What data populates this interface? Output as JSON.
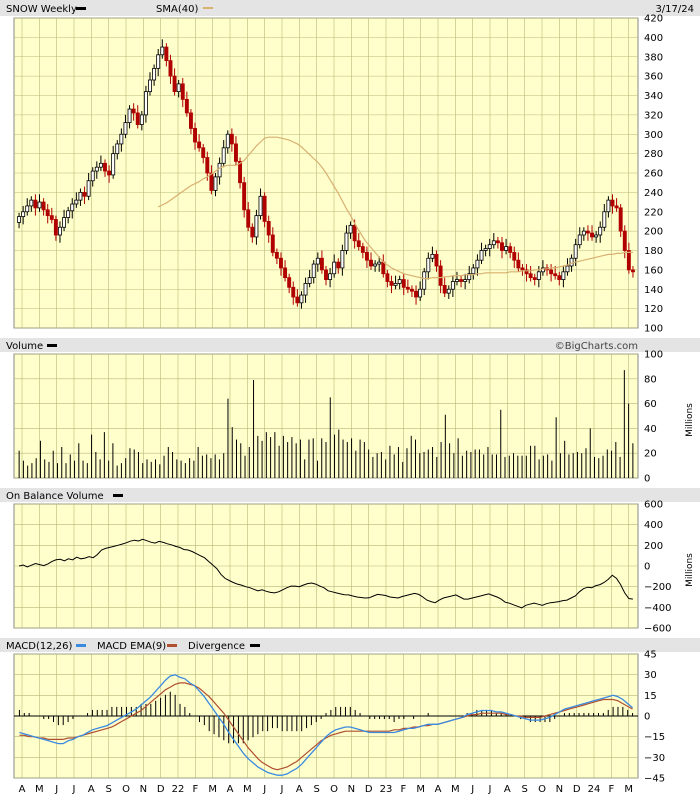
{
  "header": {
    "symbol_label": "SNOW Weekly",
    "sma_label": "SMA(40)",
    "date": "3/17/24"
  },
  "volume_header": {
    "label": "Volume",
    "credit": "©BigCharts.com"
  },
  "obv_header": {
    "label": "On Balance Volume"
  },
  "macd_header": {
    "macd_label": "MACD(12,26)",
    "ema_label": "MACD EMA(9)",
    "div_label": "Divergence"
  },
  "colors": {
    "plot_bg": "#ffffcc",
    "grid": "#b8b878",
    "header_bg": "#e4e4e4",
    "up_candle": "#000000",
    "down_candle": "#b00000",
    "sma": "#d8b070",
    "macd": "#3a8ae0",
    "ema": "#b05030",
    "line": "#000000"
  },
  "x_ticks": [
    "A",
    "M",
    "J",
    "J",
    "A",
    "S",
    "O",
    "N",
    "D",
    "22",
    "F",
    "M",
    "A",
    "M",
    "J",
    "J",
    "A",
    "S",
    "O",
    "N",
    "D",
    "23",
    "F",
    "M",
    "A",
    "M",
    "J",
    "J",
    "A",
    "S",
    "O",
    "N",
    "D",
    "24",
    "F",
    "M"
  ],
  "chart_data": [
    {
      "type": "candlestick",
      "title": "SNOW Weekly",
      "ylim": [
        100,
        420
      ],
      "y_ticks": [
        100,
        120,
        140,
        160,
        180,
        200,
        220,
        240,
        260,
        280,
        300,
        320,
        340,
        360,
        380,
        400,
        420
      ],
      "legend": [
        "SNOW Weekly",
        "SMA(40)"
      ],
      "close": [
        215,
        220,
        226,
        232,
        224,
        230,
        222,
        216,
        212,
        196,
        204,
        214,
        221,
        228,
        232,
        240,
        236,
        252,
        262,
        266,
        270,
        262,
        258,
        280,
        290,
        300,
        312,
        326,
        322,
        310,
        320,
        344,
        356,
        368,
        382,
        390,
        376,
        360,
        344,
        352,
        336,
        322,
        306,
        292,
        286,
        276,
        260,
        242,
        256,
        270,
        286,
        300,
        290,
        272,
        250,
        222,
        204,
        194,
        216,
        236,
        210,
        196,
        178,
        172,
        162,
        152,
        142,
        132,
        126,
        134,
        146,
        152,
        166,
        172,
        160,
        150,
        156,
        168,
        162,
        180,
        198,
        206,
        190,
        184,
        178,
        170,
        164,
        166,
        168,
        156,
        148,
        144,
        146,
        150,
        142,
        140,
        138,
        132,
        140,
        158,
        172,
        176,
        164,
        144,
        136,
        140,
        148,
        150,
        148,
        150,
        156,
        162,
        170,
        180,
        182,
        186,
        190,
        188,
        180,
        184,
        178,
        170,
        162,
        160,
        156,
        152,
        150,
        158,
        162,
        160,
        156,
        154,
        150,
        158,
        164,
        172,
        186,
        196,
        200,
        198,
        194,
        196,
        204,
        220,
        232,
        226,
        224,
        200,
        180,
        160,
        158
      ],
      "sma": [
        225,
        227,
        229,
        232,
        235,
        238,
        241,
        244,
        247,
        249,
        251,
        254,
        256,
        259,
        262,
        265,
        267,
        268,
        268,
        268,
        270,
        273,
        278,
        283,
        288,
        292,
        296,
        297,
        297,
        297,
        296,
        295,
        294,
        292,
        290,
        287,
        283,
        279,
        275,
        271,
        266,
        260,
        253,
        246,
        239,
        231,
        223,
        216,
        208,
        201,
        194,
        188,
        183,
        178,
        173,
        168,
        165,
        162,
        160,
        158,
        156,
        155,
        154,
        153,
        152,
        151,
        151,
        152,
        152,
        152,
        153,
        153,
        154,
        154,
        154,
        155,
        155,
        155,
        156,
        156,
        157,
        157,
        157,
        157,
        157,
        157,
        158,
        158,
        158,
        159,
        159,
        159,
        160,
        160,
        161,
        161,
        162,
        162,
        163,
        164,
        165,
        167,
        168,
        169,
        170,
        171,
        172,
        173,
        174,
        175,
        176,
        176,
        177,
        177,
        178,
        178,
        178
      ],
      "sma_offset": 34
    },
    {
      "type": "bar",
      "title": "Volume",
      "ylabel": "Millions",
      "ylim": [
        0,
        100
      ],
      "y_ticks": [
        0,
        20,
        40,
        60,
        80,
        100
      ],
      "values": [
        22,
        14,
        10,
        12,
        16,
        30,
        15,
        13,
        22,
        12,
        25,
        12,
        19,
        14,
        28,
        14,
        12,
        35,
        21,
        15,
        37,
        14,
        28,
        10,
        12,
        16,
        24,
        23,
        21,
        12,
        15,
        13,
        15,
        11,
        18,
        25,
        21,
        15,
        14,
        12,
        16,
        14,
        25,
        18,
        19,
        16,
        19,
        15,
        20,
        64,
        41,
        31,
        28,
        18,
        25,
        79,
        34,
        30,
        37,
        33,
        37,
        26,
        34,
        29,
        33,
        28,
        31,
        15,
        31,
        32,
        14,
        32,
        29,
        65,
        35,
        39,
        31,
        29,
        32,
        22,
        31,
        29,
        23,
        17,
        20,
        21,
        15,
        26,
        19,
        25,
        13,
        24,
        34,
        31,
        20,
        21,
        23,
        25,
        17,
        29,
        51,
        28,
        20,
        32,
        18,
        22,
        21,
        23,
        23,
        19,
        25,
        19,
        19,
        55,
        17,
        18,
        20,
        18,
        18,
        18,
        26,
        26,
        15,
        18,
        19,
        14,
        49,
        20,
        30,
        19,
        20,
        21,
        20,
        24,
        40,
        17,
        16,
        18,
        23,
        22,
        29,
        17,
        87,
        60,
        28
      ]
    },
    {
      "type": "line",
      "title": "On Balance Volume",
      "ylabel": "Millions",
      "ylim": [
        -600,
        600
      ],
      "y_ticks": [
        600,
        400,
        200,
        0,
        -200,
        -400,
        -600
      ],
      "values": [
        0,
        10,
        -10,
        8,
        24,
        14,
        4,
        20,
        45,
        60,
        65,
        50,
        70,
        60,
        85,
        70,
        76,
        90,
        80,
        110,
        155,
        170,
        180,
        190,
        200,
        212,
        225,
        240,
        250,
        242,
        258,
        245,
        230,
        222,
        238,
        228,
        215,
        205,
        190,
        180,
        160,
        155,
        140,
        120,
        100,
        80,
        45,
        10,
        -25,
        -80,
        -120,
        -140,
        -160,
        -175,
        -185,
        -200,
        -210,
        -225,
        -240,
        -230,
        -245,
        -255,
        -260,
        -250,
        -230,
        -210,
        -195,
        -195,
        -200,
        -185,
        -170,
        -165,
        -175,
        -195,
        -210,
        -240,
        -250,
        -260,
        -270,
        -278,
        -280,
        -290,
        -300,
        -305,
        -310,
        -308,
        -290,
        -275,
        -280,
        -285,
        -300,
        -305,
        -310,
        -295,
        -285,
        -275,
        -265,
        -275,
        -300,
        -330,
        -345,
        -355,
        -330,
        -310,
        -300,
        -290,
        -280,
        -300,
        -320,
        -320,
        -310,
        -300,
        -290,
        -280,
        -270,
        -285,
        -300,
        -320,
        -350,
        -360,
        -375,
        -390,
        -405,
        -380,
        -370,
        -360,
        -370,
        -380,
        -365,
        -355,
        -350,
        -345,
        -335,
        -330,
        -310,
        -290,
        -250,
        -220,
        -205,
        -210,
        -190,
        -180,
        -160,
        -130,
        -90,
        -120,
        -180,
        -260,
        -315,
        -320
      ]
    },
    {
      "type": "line",
      "title": "MACD(12,26)",
      "ylim": [
        -45,
        45
      ],
      "y_ticks": [
        45,
        30,
        15,
        0,
        -15,
        -30,
        -45
      ],
      "legend": [
        "MACD(12,26)",
        "MACD EMA(9)",
        "Divergence"
      ],
      "macd": [
        -12,
        -13,
        -14,
        -15,
        -16,
        -17,
        -18,
        -19,
        -20,
        -20,
        -18,
        -17,
        -15,
        -14,
        -12,
        -10,
        -9,
        -8,
        -7,
        -5,
        -3,
        -1,
        1,
        3,
        5,
        8,
        11,
        14,
        18,
        22,
        26,
        29,
        30,
        28,
        27,
        24,
        22,
        18,
        14,
        9,
        4,
        -1,
        -6,
        -12,
        -17,
        -22,
        -27,
        -31,
        -34,
        -37,
        -39,
        -41,
        -42,
        -43,
        -43,
        -42,
        -40,
        -38,
        -35,
        -31,
        -27,
        -23,
        -19,
        -15,
        -12,
        -10,
        -9,
        -8,
        -8,
        -9,
        -10,
        -11,
        -12,
        -12,
        -12,
        -12,
        -12,
        -12,
        -11,
        -10,
        -9,
        -9,
        -8,
        -7,
        -6,
        -6,
        -6,
        -5,
        -4,
        -3,
        -2,
        -1,
        1,
        2,
        3,
        4,
        4,
        4,
        3,
        3,
        2,
        1,
        0,
        -1,
        -2,
        -3,
        -3,
        -3,
        -2,
        -1,
        1,
        3,
        5,
        6,
        7,
        8,
        9,
        10,
        11,
        12,
        13,
        14,
        15,
        14,
        12,
        9,
        6
      ],
      "ema": [
        -14,
        -14,
        -15,
        -15,
        -16,
        -16,
        -17,
        -17,
        -17,
        -17,
        -16,
        -16,
        -15,
        -14,
        -13,
        -12,
        -11,
        -10,
        -9,
        -8,
        -6,
        -4,
        -2,
        0,
        2,
        4,
        7,
        10,
        13,
        16,
        19,
        21,
        23,
        24,
        24,
        23,
        22,
        20,
        17,
        14,
        10,
        6,
        2,
        -3,
        -8,
        -13,
        -18,
        -23,
        -27,
        -31,
        -34,
        -36,
        -38,
        -39,
        -38,
        -37,
        -35,
        -33,
        -30,
        -27,
        -24,
        -21,
        -18,
        -16,
        -14,
        -13,
        -12,
        -11,
        -11,
        -11,
        -11,
        -11,
        -11,
        -11,
        -11,
        -11,
        -11,
        -10,
        -10,
        -9,
        -9,
        -8,
        -8,
        -7,
        -7,
        -6,
        -6,
        -5,
        -4,
        -3,
        -2,
        -1,
        0,
        1,
        1,
        2,
        2,
        2,
        2,
        2,
        1,
        1,
        0,
        0,
        -1,
        -1,
        -1,
        -1,
        0,
        1,
        2,
        3,
        4,
        5,
        6,
        7,
        8,
        9,
        10,
        11,
        12,
        12,
        12,
        11,
        9,
        7,
        5
      ],
      "offset": 0
    }
  ]
}
